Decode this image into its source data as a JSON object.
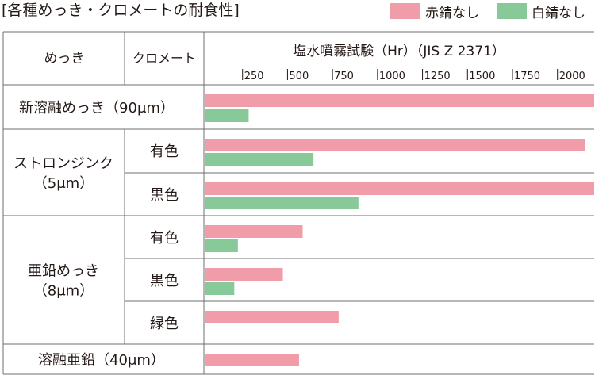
{
  "title": "[各種めっき・クロメートの耐食性]",
  "legend": [
    {
      "label": "赤錆なし",
      "color": "#f19ca9"
    },
    {
      "label": "白錆なし",
      "color": "#87c999"
    }
  ],
  "table": {
    "col_header_plating": "めっき",
    "col_header_chromate": "クロメート",
    "col_header_test": "塩水噴霧試験（Hr）（JIS Z 2371）",
    "groups": [
      {
        "label_lines": [
          "新溶融めっき（90μm）"
        ],
        "span": "full"
      },
      {
        "label_lines": [
          "ストロンジンク",
          "（5μm）"
        ],
        "span": "split"
      },
      {
        "label_lines": [
          "亜鉛めっき",
          "（8μm）"
        ],
        "span": "split"
      },
      {
        "label_lines": [
          "溶融亜鉛（40μm）"
        ],
        "span": "full"
      }
    ]
  },
  "chart_data": {
    "type": "bar",
    "orientation": "horizontal",
    "title": "塩水噴霧試験（Hr）（JIS Z 2371）",
    "xlim": [
      0,
      2160
    ],
    "xticks": [
      250,
      500,
      750,
      1000,
      1250,
      1500,
      1750,
      2000
    ],
    "series": [
      {
        "name": "赤錆なし",
        "color": "#f19ca9"
      },
      {
        "name": "白錆なし",
        "color": "#87c999"
      }
    ],
    "rows": [
      {
        "plating": "新溶融めっき（90μm）",
        "chromate": "",
        "red": 2160,
        "white": 240
      },
      {
        "plating": "ストロンジンク（5μm）",
        "chromate": "有色",
        "red": 2110,
        "white": 600
      },
      {
        "plating": "ストロンジンク（5μm）",
        "chromate": "黒色",
        "red": 2160,
        "white": 850
      },
      {
        "plating": "亜鉛めっき（8μm）",
        "chromate": "有色",
        "red": 540,
        "white": 180
      },
      {
        "plating": "亜鉛めっき（8μm）",
        "chromate": "黒色",
        "red": 430,
        "white": 160
      },
      {
        "plating": "亜鉛めっき（8μm）",
        "chromate": "緑色",
        "red": 740,
        "white": null
      },
      {
        "plating": "溶融亜鉛（40μm）",
        "chromate": "",
        "red": 520,
        "white": null
      }
    ]
  }
}
